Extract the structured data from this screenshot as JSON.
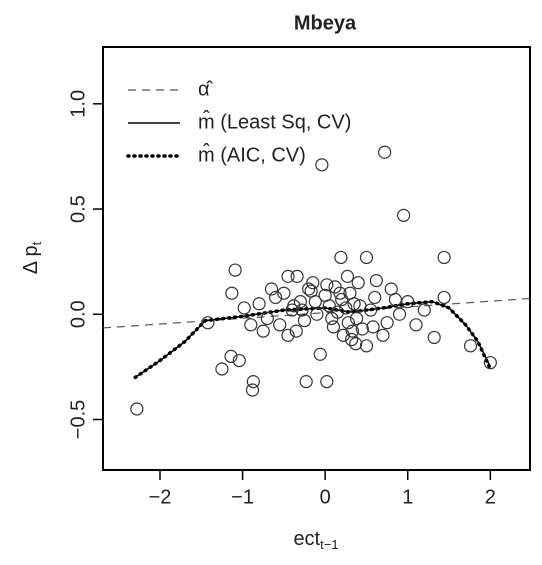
{
  "chart_data": {
    "type": "scatter",
    "title": "Mbeya",
    "xlabel": "ect",
    "xlabel_sub": "t−1",
    "ylabel": "Δ p",
    "ylabel_sub": "t",
    "xlim": [
      -2.69,
      2.48
    ],
    "ylim": [
      -0.74,
      1.27
    ],
    "xticks": [
      {
        "value": -2,
        "label": "−2"
      },
      {
        "value": -1,
        "label": "−1"
      },
      0,
      1,
      2
    ],
    "yticks": [
      {
        "value": -0.5,
        "label": "−0.5"
      },
      {
        "value": 0,
        "label": "0.0"
      },
      {
        "value": 0.5,
        "label": "0.5"
      },
      {
        "value": 1,
        "label": "1.0"
      }
    ],
    "series": [
      {
        "name": "α̂",
        "type": "line",
        "style": "dashed",
        "color": "#555555",
        "x": [
          -2.69,
          2.48
        ],
        "values": [
          -0.065,
          0.075
        ]
      },
      {
        "name": "m̂  (Least Sq, CV)",
        "type": "line",
        "style": "solid",
        "color": "#000000",
        "x": [
          -2.3,
          -2.0,
          -1.7,
          -1.45,
          -1.0,
          -0.5,
          0,
          0.3,
          0.7,
          1.0,
          1.3,
          1.5,
          1.7,
          1.85,
          2.0
        ],
        "values": [
          -0.3,
          -0.22,
          -0.13,
          -0.03,
          -0.01,
          0.02,
          0.03,
          0.01,
          0.03,
          0.05,
          0.06,
          0.03,
          -0.05,
          -0.13,
          -0.25
        ]
      },
      {
        "name": "m̂  (AIC, CV)",
        "type": "line",
        "style": "dotted",
        "color": "#000000",
        "x": [
          -2.3,
          -2.0,
          -1.7,
          -1.45,
          -1.0,
          -0.5,
          0,
          0.3,
          0.7,
          1.0,
          1.3,
          1.5,
          1.7,
          1.85,
          2.0
        ],
        "values": [
          -0.3,
          -0.22,
          -0.13,
          -0.03,
          -0.01,
          0.02,
          0.03,
          0.01,
          0.03,
          0.05,
          0.06,
          0.03,
          -0.05,
          -0.13,
          -0.26
        ]
      },
      {
        "type": "scatter",
        "color": "#333333",
        "x": [
          -2.28,
          0.72,
          -0.04,
          0.95,
          1.44,
          -1.09,
          -1.13,
          -1.25,
          -1.14,
          -1.04,
          -0.87,
          -0.88,
          -0.23,
          0.02,
          -0.06,
          0.19,
          0.5,
          1.32,
          1.76,
          2.0,
          1.44,
          -1.42,
          -0.45,
          -0.34,
          -0.17,
          -0.15,
          -0.8,
          -0.7,
          -0.6,
          -0.55,
          -0.5,
          -0.4,
          -0.35,
          -0.3,
          -0.25,
          -0.2,
          -0.1,
          0.0,
          0.05,
          0.1,
          0.12,
          0.15,
          0.2,
          0.22,
          0.25,
          0.28,
          0.3,
          0.32,
          0.35,
          0.38,
          0.4,
          0.45,
          0.5,
          0.55,
          0.6,
          0.7,
          0.8,
          0.9,
          1.0,
          1.1,
          -0.9,
          -0.65,
          -0.45,
          -0.28,
          -0.12,
          0.08,
          0.18,
          0.33,
          0.42,
          0.62,
          0.75,
          -0.98,
          -0.75,
          0.27,
          0.37,
          0.02,
          -0.38,
          0.58,
          0.85,
          1.2
        ],
        "values": [
          -0.45,
          0.77,
          0.71,
          0.47,
          0.27,
          0.21,
          0.1,
          -0.26,
          -0.2,
          -0.22,
          -0.32,
          -0.36,
          -0.32,
          -0.32,
          -0.19,
          0.27,
          0.27,
          -0.11,
          -0.15,
          -0.23,
          0.08,
          -0.04,
          0.18,
          0.18,
          0.11,
          0.15,
          0.05,
          -0.02,
          0.08,
          -0.05,
          0.1,
          0.02,
          -0.08,
          0.06,
          -0.03,
          0.12,
          0.0,
          0.09,
          0.04,
          -0.06,
          0.13,
          0.01,
          0.07,
          -0.1,
          0.03,
          -0.04,
          0.1,
          -0.12,
          0.05,
          -0.02,
          0.15,
          -0.07,
          -0.15,
          0.02,
          0.08,
          -0.1,
          0.12,
          0.0,
          0.06,
          -0.05,
          -0.05,
          0.12,
          -0.1,
          0.02,
          0.06,
          -0.02,
          0.1,
          -0.08,
          0.04,
          0.16,
          -0.04,
          0.03,
          -0.08,
          0.18,
          -0.14,
          0.14,
          0.04,
          -0.06,
          0.07,
          0.02
        ]
      }
    ]
  }
}
